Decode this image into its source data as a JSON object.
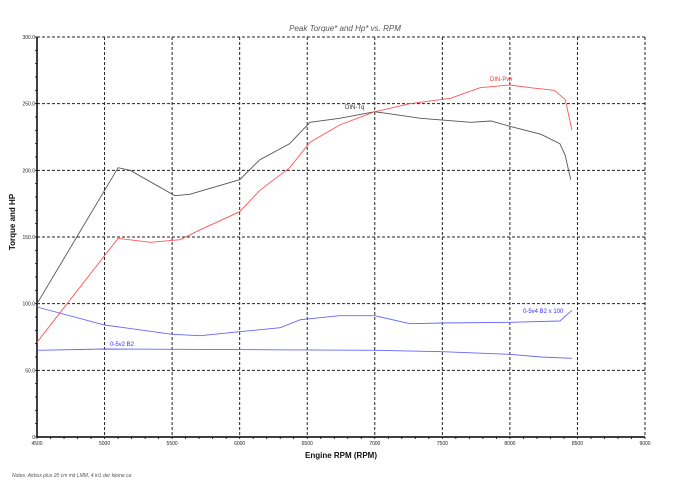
{
  "chart_data": {
    "type": "line",
    "title": "Peak Torque* and Hp* vs. RPM",
    "xlabel": "Engine RPM (RPM)",
    "ylabel": "Torque and HP",
    "xlim": [
      4500,
      9000
    ],
    "ylim": [
      0,
      300
    ],
    "xticks": [
      "4500",
      "5000",
      "5500",
      "6000",
      "6500",
      "7000",
      "7500",
      "8000",
      "8500",
      "9000"
    ],
    "yticks": [
      "0",
      "50.0",
      "100.0",
      "150.0",
      "200.0",
      "250.0",
      "300.0"
    ],
    "grid": true,
    "notes": "Notes: Airbox plus 20 cm mit LMM, 4 in1 der kleine ca",
    "series": [
      {
        "name": "DIN-Tq",
        "color": "#555555",
        "x": [
          4500,
          5100,
          5190,
          5520,
          5630,
          6000,
          6150,
          6370,
          6520,
          6740,
          7000,
          7340,
          7710,
          7860,
          8000,
          8230,
          8370,
          8410,
          8450
        ],
        "y": [
          100,
          202,
          200,
          181,
          182,
          193,
          208,
          220,
          236,
          239,
          244,
          239,
          236,
          237,
          233,
          227,
          220,
          211,
          193
        ]
      },
      {
        "name": "DIN-Pwr",
        "color": "#ff5555",
        "x": [
          4500,
          5100,
          5340,
          5560,
          5700,
          6000,
          6150,
          6370,
          6520,
          6740,
          7000,
          7260,
          7560,
          7780,
          8000,
          8150,
          8330,
          8410,
          8460
        ],
        "y": [
          71,
          149,
          146,
          148,
          155,
          169,
          185,
          202,
          221,
          234,
          244,
          250,
          254,
          262,
          264,
          262,
          260,
          253,
          230
        ]
      },
      {
        "name": "0-5v4 B2 x 100",
        "color": "#6666ff",
        "x": [
          4500,
          5000,
          5500,
          5710,
          6000,
          6300,
          6450,
          6740,
          7000,
          7260,
          7500,
          8000,
          8370,
          8460
        ],
        "y": [
          97.5,
          84,
          77,
          76,
          79,
          82,
          88,
          91,
          91,
          85,
          85.5,
          86,
          87,
          95
        ]
      },
      {
        "name": "0-5v2 B2",
        "color": "#6666ff",
        "x": [
          4500,
          5000,
          7000,
          7500,
          8000,
          8230,
          8460
        ],
        "y": [
          65,
          66,
          65,
          64,
          62,
          60,
          59
        ]
      }
    ]
  }
}
